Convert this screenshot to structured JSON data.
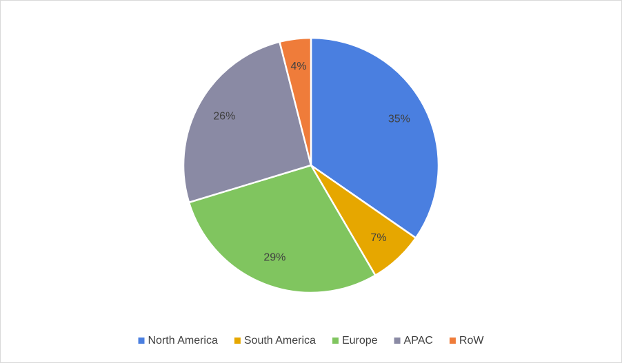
{
  "chart_data": {
    "type": "pie",
    "categories": [
      "North America",
      "South America",
      "Europe",
      "APAC",
      "RoW"
    ],
    "values": [
      35,
      7,
      29,
      26,
      4
    ],
    "value_labels": [
      "35%",
      "7%",
      "29%",
      "26%",
      "4%"
    ],
    "colors": [
      "#4a7fe0",
      "#e6a700",
      "#80c55f",
      "#8a8aa4",
      "#ef7c3a"
    ],
    "legend": "bottom"
  }
}
